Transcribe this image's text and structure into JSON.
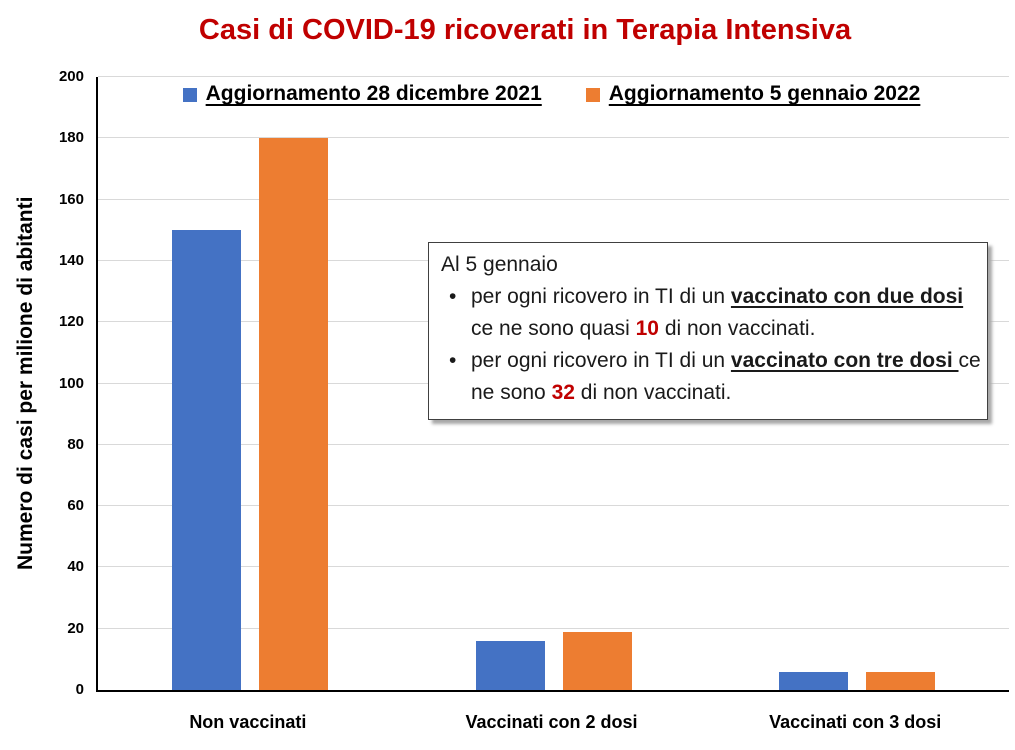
{
  "chart_data": {
    "type": "bar",
    "title": "Casi di COVID-19 ricoverati in Terapia Intensiva",
    "title_color": "#C00000",
    "categories": [
      "Non vaccinati",
      "Vaccinati con 2 dosi",
      "Vaccinati con 3 dosi"
    ],
    "series": [
      {
        "name": "Aggiornamento 28 dicembre 2021",
        "color": "#4472C4",
        "values": [
          150,
          16,
          6
        ]
      },
      {
        "name": "Aggiornamento 5 gennaio 2022",
        "color": "#ED7D31",
        "values": [
          180,
          19,
          6
        ]
      }
    ],
    "xlabel": "",
    "ylabel": "Numero di casi per milione di abitanti",
    "ylim": [
      0,
      200
    ],
    "ytick_step": 20,
    "grid": true,
    "legend_position": "top-center",
    "gridline_color": "#d9d9d9",
    "axis_color": "#000000"
  },
  "note_box": {
    "heading": "Al 5 gennaio",
    "bullet_glyph": "•",
    "accent_color": "#C00000",
    "bullets": [
      {
        "pre": "per ogni ricovero in TI di un ",
        "em": "vaccinato con due dosi ",
        "mid": "ce ne sono quasi ",
        "num": "10",
        "post": " di non vaccinati."
      },
      {
        "pre": "per ogni ricovero in TI di un ",
        "em": "vaccinato con tre dosi ",
        "mid": "ce ne sono ",
        "num": "32",
        "post": " di non vaccinati."
      }
    ]
  }
}
